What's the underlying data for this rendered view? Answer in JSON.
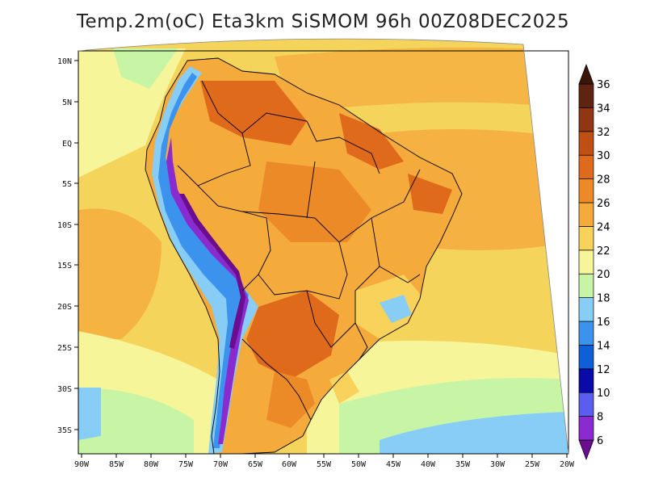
{
  "title": "Temp.2m(oC) Eta3km SiSMOM 96h 00Z08DEC2025",
  "lat_labels": [
    "10N",
    "5N",
    "EQ",
    "5S",
    "10S",
    "15S",
    "20S",
    "25S",
    "30S",
    "35S"
  ],
  "lon_labels": [
    "90W",
    "85W",
    "80W",
    "75W",
    "70W",
    "65W",
    "60W",
    "55W",
    "50W",
    "45W",
    "40W",
    "35W",
    "30W",
    "25W",
    "20W"
  ],
  "colorbar": {
    "labels": [
      "6",
      "8",
      "10",
      "12",
      "14",
      "16",
      "18",
      "20",
      "22",
      "24",
      "26",
      "28",
      "30",
      "32",
      "34",
      "36"
    ],
    "colors": [
      "#6a0d8f",
      "#8a2bd0",
      "#5a5ef0",
      "#0a0aa8",
      "#0f5fd8",
      "#3c93ee",
      "#87cdf5",
      "#c8f5a5",
      "#f7f59a",
      "#f8d25a",
      "#f5aa3c",
      "#ec8a28",
      "#e06a1c",
      "#c04f14",
      "#8f3612",
      "#5f2410",
      "#3a1608"
    ]
  },
  "colors": {
    "ocean_base": "#f5d45c",
    "south_ocean": "#f7f59a",
    "cool_ocean": "#c8f5a5",
    "cold_ocean": "#87cdf5",
    "land_hot": "#ec8a28",
    "andes_cold": "#6a0d8f",
    "border": "#000000"
  }
}
